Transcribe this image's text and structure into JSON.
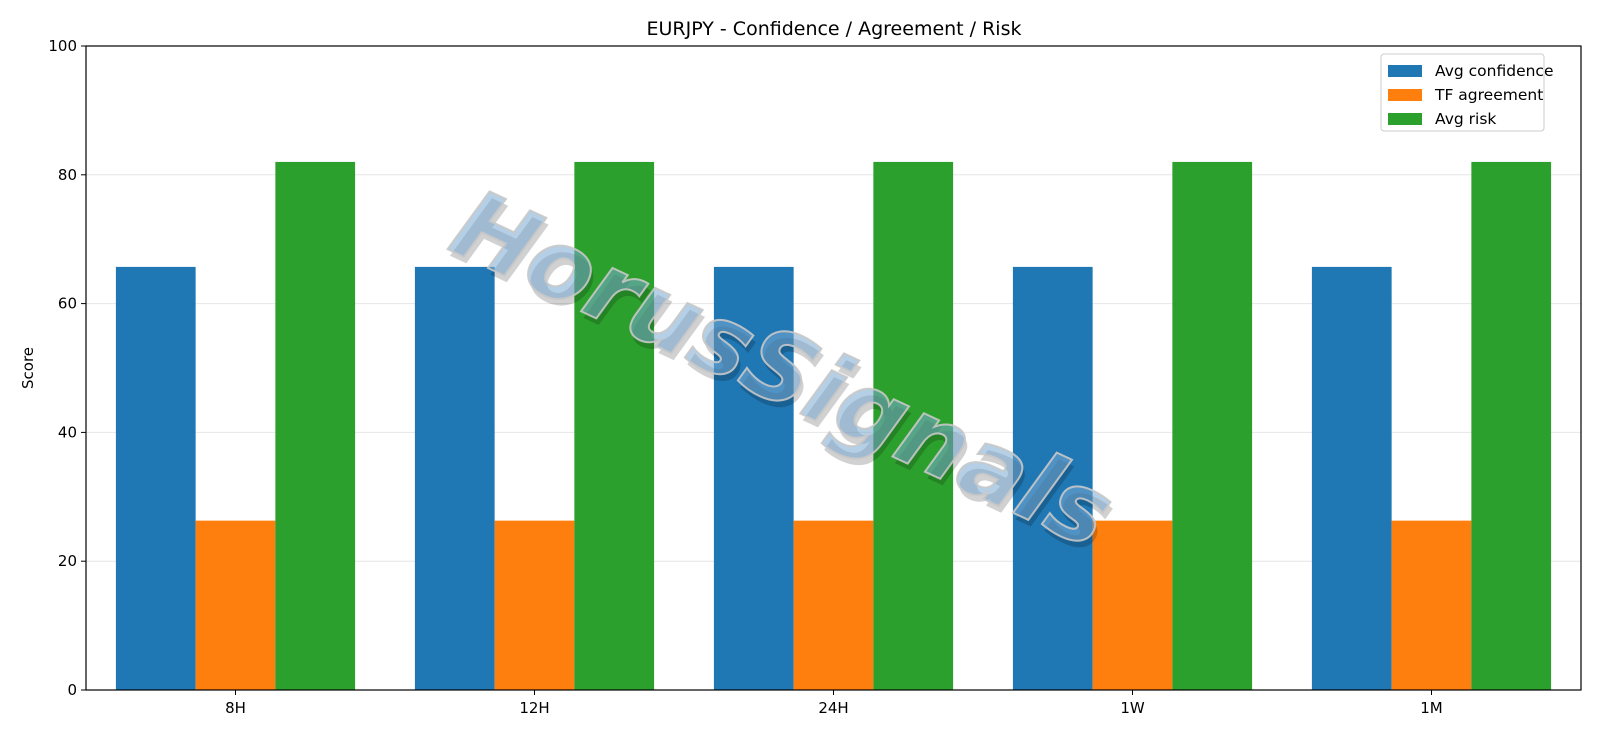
{
  "chart_data": {
    "type": "bar",
    "title": "EURJPY - Confidence / Agreement / Risk",
    "xlabel": "",
    "ylabel": "Score",
    "categories": [
      "8H",
      "12H",
      "24H",
      "1W",
      "1M"
    ],
    "ylim": [
      0,
      100
    ],
    "yticks": [
      0,
      20,
      40,
      60,
      80,
      100
    ],
    "grid": "y",
    "legend_position": "top-right",
    "series": [
      {
        "name": "Avg confidence",
        "color": "#1f77b4",
        "values": [
          65.7,
          65.7,
          65.7,
          65.7,
          65.7
        ]
      },
      {
        "name": "TF agreement",
        "color": "#ff7f0e",
        "values": [
          26.3,
          26.3,
          26.3,
          26.3,
          26.3
        ]
      },
      {
        "name": "Avg risk",
        "color": "#2ca02c",
        "values": [
          82,
          82,
          82,
          82,
          82
        ]
      }
    ]
  },
  "watermark": {
    "text": "HorusSignals"
  }
}
